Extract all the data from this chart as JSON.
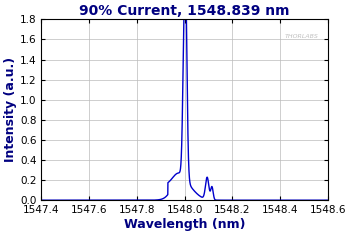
{
  "title": "90% Current, 1548.839 nm",
  "xlabel": "Wavelength (nm)",
  "ylabel": "Intensity (a.u.)",
  "xlim": [
    1547.4,
    1548.6
  ],
  "ylim": [
    0.0,
    1.8
  ],
  "xticks": [
    1547.4,
    1547.6,
    1547.8,
    1548.0,
    1548.2,
    1548.4,
    1548.6
  ],
  "yticks": [
    0.0,
    0.2,
    0.4,
    0.6,
    0.8,
    1.0,
    1.2,
    1.4,
    1.6,
    1.8
  ],
  "line_color": "#0000cc",
  "background_color": "#ffffff",
  "grid_color": "#bbbbbb",
  "watermark": "THORLABS",
  "watermark_color": "#c0c0c0",
  "title_fontsize": 10,
  "label_fontsize": 9,
  "tick_fontsize": 7.5,
  "title_color": "#000080",
  "label_color": "#000080"
}
